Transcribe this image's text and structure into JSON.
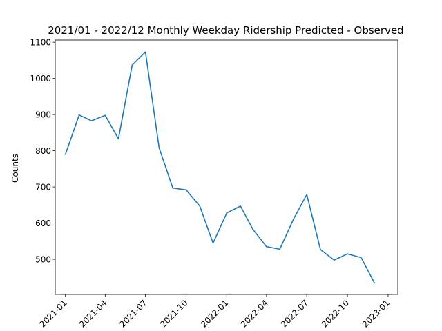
{
  "chart_data": {
    "type": "line",
    "title": "2021/01 - 2022/12 Monthly Weekday Ridership Predicted - Observed",
    "xlabel": "",
    "ylabel": "Counts",
    "x": [
      "2021-01",
      "2021-02",
      "2021-03",
      "2021-04",
      "2021-05",
      "2021-06",
      "2021-07",
      "2021-08",
      "2021-09",
      "2021-10",
      "2021-11",
      "2021-12",
      "2022-01",
      "2022-02",
      "2022-03",
      "2022-04",
      "2022-05",
      "2022-06",
      "2022-07",
      "2022-08",
      "2022-09",
      "2022-10",
      "2022-11",
      "2022-12"
    ],
    "series": [
      {
        "color": "#1f77b4",
        "values": [
          790,
          899,
          883,
          898,
          833,
          1037,
          1073,
          808,
          697,
          692,
          647,
          545,
          628,
          647,
          583,
          535,
          528,
          611,
          679,
          527,
          498,
          515,
          505,
          435
        ]
      }
    ],
    "ylim": [
      403,
      1106
    ],
    "yticks": [
      500,
      600,
      700,
      800,
      900,
      1000,
      1100
    ],
    "xticks": [
      "2021-01",
      "2021-04",
      "2021-07",
      "2021-10",
      "2022-01",
      "2022-04",
      "2022-07",
      "2022-10",
      "2023-01"
    ],
    "xlim": [
      "2020-12-09",
      "2023-01-23"
    ],
    "grid": false,
    "legend": "none"
  }
}
